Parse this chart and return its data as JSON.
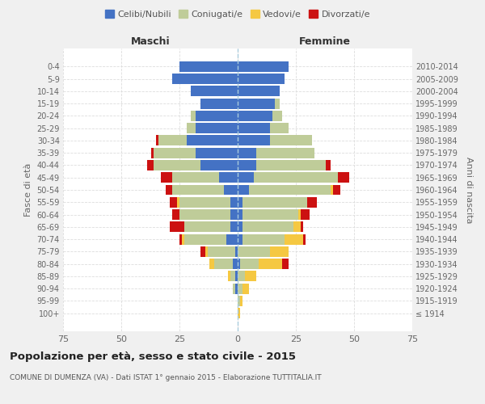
{
  "age_groups": [
    "100+",
    "95-99",
    "90-94",
    "85-89",
    "80-84",
    "75-79",
    "70-74",
    "65-69",
    "60-64",
    "55-59",
    "50-54",
    "45-49",
    "40-44",
    "35-39",
    "30-34",
    "25-29",
    "20-24",
    "15-19",
    "10-14",
    "5-9",
    "0-4"
  ],
  "birth_years": [
    "≤ 1914",
    "1915-1919",
    "1920-1924",
    "1925-1929",
    "1930-1934",
    "1935-1939",
    "1940-1944",
    "1945-1949",
    "1950-1954",
    "1955-1959",
    "1960-1964",
    "1965-1969",
    "1970-1974",
    "1975-1979",
    "1980-1984",
    "1985-1989",
    "1990-1994",
    "1995-1999",
    "2000-2004",
    "2005-2009",
    "2010-2014"
  ],
  "males": {
    "celibe": [
      0,
      0,
      1,
      1,
      2,
      1,
      5,
      3,
      3,
      3,
      6,
      8,
      16,
      18,
      22,
      18,
      18,
      16,
      20,
      28,
      25
    ],
    "coniugato": [
      0,
      0,
      1,
      2,
      8,
      12,
      18,
      20,
      22,
      22,
      22,
      20,
      20,
      18,
      12,
      4,
      2,
      0,
      0,
      0,
      0
    ],
    "vedovo": [
      0,
      0,
      0,
      1,
      2,
      1,
      1,
      0,
      0,
      1,
      0,
      0,
      0,
      0,
      0,
      0,
      0,
      0,
      0,
      0,
      0
    ],
    "divorziato": [
      0,
      0,
      0,
      0,
      0,
      2,
      1,
      6,
      3,
      3,
      3,
      5,
      3,
      1,
      1,
      0,
      0,
      0,
      0,
      0,
      0
    ]
  },
  "females": {
    "nubile": [
      0,
      0,
      0,
      0,
      1,
      0,
      2,
      2,
      2,
      2,
      5,
      7,
      8,
      8,
      14,
      14,
      15,
      16,
      18,
      20,
      22
    ],
    "coniugata": [
      0,
      1,
      2,
      3,
      8,
      14,
      18,
      22,
      24,
      28,
      35,
      36,
      30,
      25,
      18,
      8,
      4,
      2,
      0,
      0,
      0
    ],
    "vedova": [
      1,
      1,
      3,
      5,
      10,
      8,
      8,
      3,
      1,
      0,
      1,
      0,
      0,
      0,
      0,
      0,
      0,
      0,
      0,
      0,
      0
    ],
    "divorziata": [
      0,
      0,
      0,
      0,
      3,
      0,
      1,
      1,
      4,
      4,
      3,
      5,
      2,
      0,
      0,
      0,
      0,
      0,
      0,
      0,
      0
    ]
  },
  "colors": {
    "celibe_nubile": "#4472C4",
    "coniugato_a": "#BFCC99",
    "vedovo_a": "#F5C842",
    "divorziato_a": "#CC1111"
  },
  "xlim": 75,
  "title": "Popolazione per età, sesso e stato civile - 2015",
  "subtitle": "COMUNE DI DUMENZA (VA) - Dati ISTAT 1° gennaio 2015 - Elaborazione TUTTITALIA.IT",
  "xlabel_left": "Maschi",
  "xlabel_right": "Femmine",
  "ylabel_left": "Fasce di età",
  "ylabel_right": "Anni di nascita",
  "background_color": "#f0f0f0",
  "plot_bg_color": "#ffffff"
}
